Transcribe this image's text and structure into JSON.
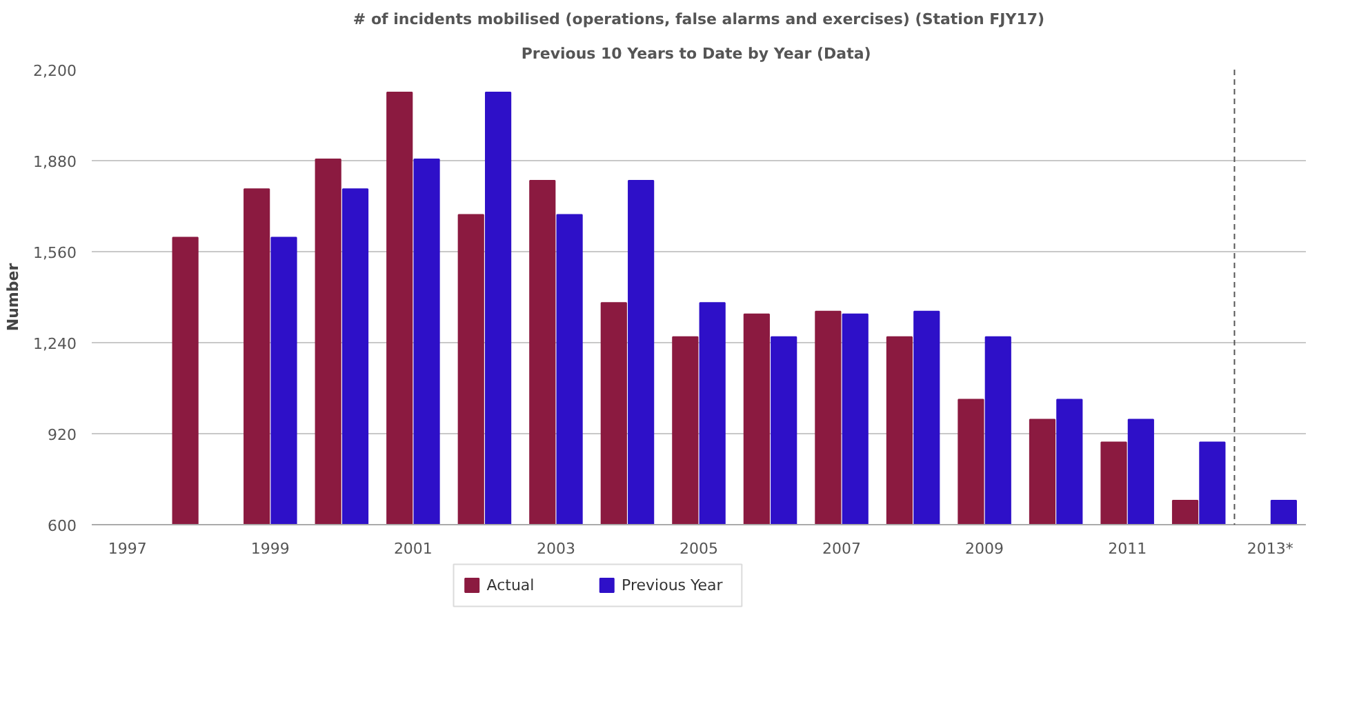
{
  "chart_data": {
    "type": "bar",
    "title": "# of incidents mobilised (operations, false alarms and exercises) (Station FJY17)",
    "subtitle": "Previous 10 Years  to Date by Year (Data)",
    "ylabel": "Number",
    "x": [
      1998,
      1999,
      2000,
      2001,
      2002,
      2003,
      2004,
      2005,
      2006,
      2007,
      2008,
      2009,
      2010,
      2011,
      2012,
      2013
    ],
    "xlim": [
      1996.5,
      2013.5
    ],
    "xticks": [
      1997,
      1999,
      2001,
      2003,
      2005,
      2007,
      2009,
      2011,
      {
        "value": 2013,
        "label": "2013*"
      }
    ],
    "ylim": [
      600,
      2200
    ],
    "yticks": [
      {
        "value": 600,
        "label": "600"
      },
      {
        "value": 920,
        "label": "920"
      },
      {
        "value": 1240,
        "label": "1,240"
      },
      {
        "value": 1560,
        "label": "1,560"
      },
      {
        "value": 1880,
        "label": "1,880"
      },
      {
        "value": 2200,
        "label": "2,200"
      }
    ],
    "series": [
      {
        "name": "Actual",
        "color": "#8b1a40",
        "values": [
          1610,
          1780,
          1885,
          2120,
          1690,
          1810,
          1380,
          1260,
          1340,
          1350,
          1260,
          1040,
          970,
          890,
          685,
          null
        ]
      },
      {
        "name": "Previous Year",
        "color": "#2e10c8",
        "values": [
          null,
          1610,
          1780,
          1885,
          2120,
          1690,
          1810,
          1380,
          1260,
          1340,
          1350,
          1260,
          1040,
          970,
          890,
          685
        ]
      }
    ],
    "ref_lines": [
      {
        "axis": "x",
        "value": 2012.5,
        "label": null,
        "color": "#555555",
        "line_style": "dashed"
      }
    ],
    "grid": "y",
    "legend": "bottom"
  }
}
